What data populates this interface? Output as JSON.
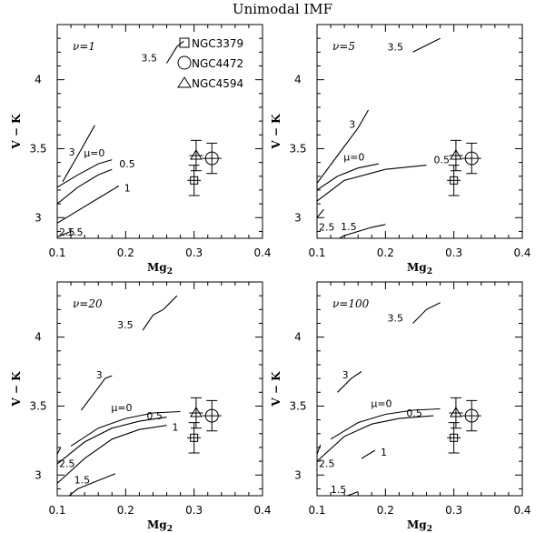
{
  "title": "Unimodal IMF",
  "xlabel": "Mg2",
  "xlabel_base": "Mg",
  "xlabel_sub": "2",
  "ylabel": "V − K",
  "legend": [
    {
      "label": "NGC3379",
      "marker": "square"
    },
    {
      "label": "NGC4472",
      "marker": "circle"
    },
    {
      "label": "NGC4594",
      "marker": "triangle"
    }
  ],
  "chart_data": [
    {
      "type": "line",
      "panel_label": "ν=1",
      "xlim": [
        0.1,
        0.4
      ],
      "ylim": [
        2.85,
        4.4
      ],
      "xticks": [
        "0.1",
        "0.2",
        "0.3",
        "0.4"
      ],
      "yticks": [
        "3",
        "3.5",
        "4"
      ],
      "series": [
        {
          "name": "3.5",
          "points": [
            [
              0.26,
              4.12
            ],
            [
              0.275,
              4.24
            ],
            [
              0.285,
              4.28
            ]
          ]
        },
        {
          "name": "3",
          "points": [
            [
              0.108,
              3.26
            ],
            [
              0.13,
              3.45
            ],
            [
              0.155,
              3.67
            ]
          ]
        },
        {
          "name": "μ=0",
          "points": [
            [
              0.1,
              3.22
            ],
            [
              0.13,
              3.31
            ],
            [
              0.16,
              3.39
            ],
            [
              0.18,
              3.42
            ]
          ]
        },
        {
          "name": "0.5",
          "points": [
            [
              0.1,
              3.1
            ],
            [
              0.13,
              3.22
            ],
            [
              0.16,
              3.31
            ],
            [
              0.18,
              3.35
            ]
          ]
        },
        {
          "name": "1",
          "points": [
            [
              0.1,
              2.96
            ],
            [
              0.13,
              3.05
            ],
            [
              0.16,
              3.14
            ],
            [
              0.19,
              3.23
            ]
          ]
        },
        {
          "name": "2.5",
          "points": [
            [
              0.1,
              2.86
            ],
            [
              0.12,
              2.9
            ]
          ]
        },
        {
          "name": "1.5",
          "points": [
            [
              0.12,
              2.65
            ],
            [
              0.14,
              2.74
            ],
            [
              0.16,
              2.78
            ]
          ]
        }
      ]
    },
    {
      "type": "line",
      "panel_label": "ν=5",
      "xlim": [
        0.1,
        0.4
      ],
      "ylim": [
        2.85,
        4.4
      ],
      "xticks": [
        "0.1",
        "0.2",
        "0.3",
        "0.4"
      ],
      "yticks": [
        "3",
        "3.5",
        "4"
      ],
      "series": [
        {
          "name": "3.5",
          "points": [
            [
              0.24,
              4.2
            ],
            [
              0.26,
              4.25
            ],
            [
              0.28,
              4.3
            ]
          ]
        },
        {
          "name": "3",
          "points": [
            [
              0.1,
              3.25
            ],
            [
              0.13,
              3.45
            ],
            [
              0.16,
              3.65
            ],
            [
              0.175,
              3.78
            ]
          ]
        },
        {
          "name": "μ=0",
          "points": [
            [
              0.1,
              3.2
            ],
            [
              0.13,
              3.3
            ],
            [
              0.16,
              3.36
            ],
            [
              0.19,
              3.39
            ]
          ]
        },
        {
          "name": "0.5",
          "points": [
            [
              0.1,
              3.12
            ],
            [
              0.14,
              3.27
            ],
            [
              0.2,
              3.35
            ],
            [
              0.26,
              3.38
            ]
          ]
        },
        {
          "name": "2.5",
          "points": [
            [
              0.1,
              3.0
            ],
            [
              0.11,
              3.06
            ]
          ]
        },
        {
          "name": "1.5",
          "points": [
            [
              0.1,
              2.76
            ],
            [
              0.14,
              2.87
            ],
            [
              0.18,
              2.93
            ],
            [
              0.2,
              2.95
            ]
          ]
        }
      ]
    },
    {
      "type": "line",
      "panel_label": "ν=20",
      "xlim": [
        0.1,
        0.4
      ],
      "ylim": [
        2.85,
        4.4
      ],
      "xticks": [
        "0.1",
        "0.2",
        "0.3",
        "0.4"
      ],
      "yticks": [
        "3",
        "3.5",
        "4"
      ],
      "series": [
        {
          "name": "3.5",
          "points": [
            [
              0.225,
              4.05
            ],
            [
              0.24,
              4.16
            ],
            [
              0.255,
              4.2
            ],
            [
              0.275,
              4.3
            ]
          ]
        },
        {
          "name": "3",
          "points": [
            [
              0.135,
              3.47
            ],
            [
              0.155,
              3.6
            ],
            [
              0.17,
              3.7
            ],
            [
              0.18,
              3.72
            ]
          ]
        },
        {
          "name": "μ=0",
          "points": [
            [
              0.12,
              3.21
            ],
            [
              0.16,
              3.34
            ],
            [
              0.2,
              3.41
            ],
            [
              0.24,
              3.45
            ],
            [
              0.28,
              3.46
            ]
          ]
        },
        {
          "name": "0.5",
          "points": [
            [
              0.1,
              3.08
            ],
            [
              0.14,
              3.24
            ],
            [
              0.18,
              3.34
            ],
            [
              0.22,
              3.39
            ],
            [
              0.26,
              3.42
            ]
          ]
        },
        {
          "name": "1",
          "points": [
            [
              0.1,
              2.94
            ],
            [
              0.14,
              3.12
            ],
            [
              0.18,
              3.26
            ],
            [
              0.22,
              3.33
            ],
            [
              0.26,
              3.36
            ]
          ]
        },
        {
          "name": "2.5",
          "points": [
            [
              0.1,
              3.15
            ],
            [
              0.105,
              3.2
            ]
          ]
        },
        {
          "name": "1.5",
          "points": [
            [
              0.1,
              2.78
            ],
            [
              0.13,
              2.9
            ],
            [
              0.16,
              2.96
            ],
            [
              0.185,
              3.01
            ]
          ]
        }
      ]
    },
    {
      "type": "line",
      "panel_label": "ν=100",
      "xlim": [
        0.1,
        0.4
      ],
      "ylim": [
        2.85,
        4.4
      ],
      "xticks": [
        "0.1",
        "0.2",
        "0.3",
        "0.4"
      ],
      "yticks": [
        "3",
        "3.5",
        "4"
      ],
      "series": [
        {
          "name": "3.5",
          "points": [
            [
              0.24,
              4.1
            ],
            [
              0.26,
              4.2
            ],
            [
              0.28,
              4.25
            ]
          ]
        },
        {
          "name": "3",
          "points": [
            [
              0.13,
              3.6
            ],
            [
              0.15,
              3.7
            ],
            [
              0.165,
              3.75
            ]
          ]
        },
        {
          "name": "μ=0",
          "points": [
            [
              0.12,
              3.26
            ],
            [
              0.16,
              3.38
            ],
            [
              0.2,
              3.44
            ],
            [
              0.24,
              3.47
            ],
            [
              0.28,
              3.48
            ]
          ]
        },
        {
          "name": "0.5",
          "points": [
            [
              0.1,
              3.1
            ],
            [
              0.14,
              3.28
            ],
            [
              0.18,
              3.37
            ],
            [
              0.22,
              3.41
            ],
            [
              0.27,
              3.43
            ]
          ]
        },
        {
          "name": "1",
          "points": [
            [
              0.165,
              3.12
            ],
            [
              0.175,
              3.15
            ],
            [
              0.185,
              3.18
            ]
          ]
        },
        {
          "name": "2.5",
          "points": [
            [
              0.1,
              3.15
            ],
            [
              0.105,
              3.22
            ]
          ]
        },
        {
          "name": "1.5",
          "points": [
            [
              0.1,
              2.7
            ],
            [
              0.125,
              2.82
            ],
            [
              0.15,
              2.86
            ],
            [
              0.16,
              2.88
            ]
          ]
        }
      ]
    }
  ],
  "galaxies": [
    {
      "name": "NGC3379",
      "marker": "square",
      "mg2": 0.3,
      "vk": 3.27,
      "err_mg2": 0.01,
      "err_vk": 0.11
    },
    {
      "name": "NGC4472",
      "marker": "circle",
      "mg2": 0.326,
      "vk": 3.43,
      "err_mg2": 0.014,
      "err_vk": 0.11
    },
    {
      "name": "NGC4594",
      "marker": "triangle",
      "mg2": 0.303,
      "vk": 3.45,
      "err_mg2": 0.01,
      "err_vk": 0.11
    }
  ]
}
